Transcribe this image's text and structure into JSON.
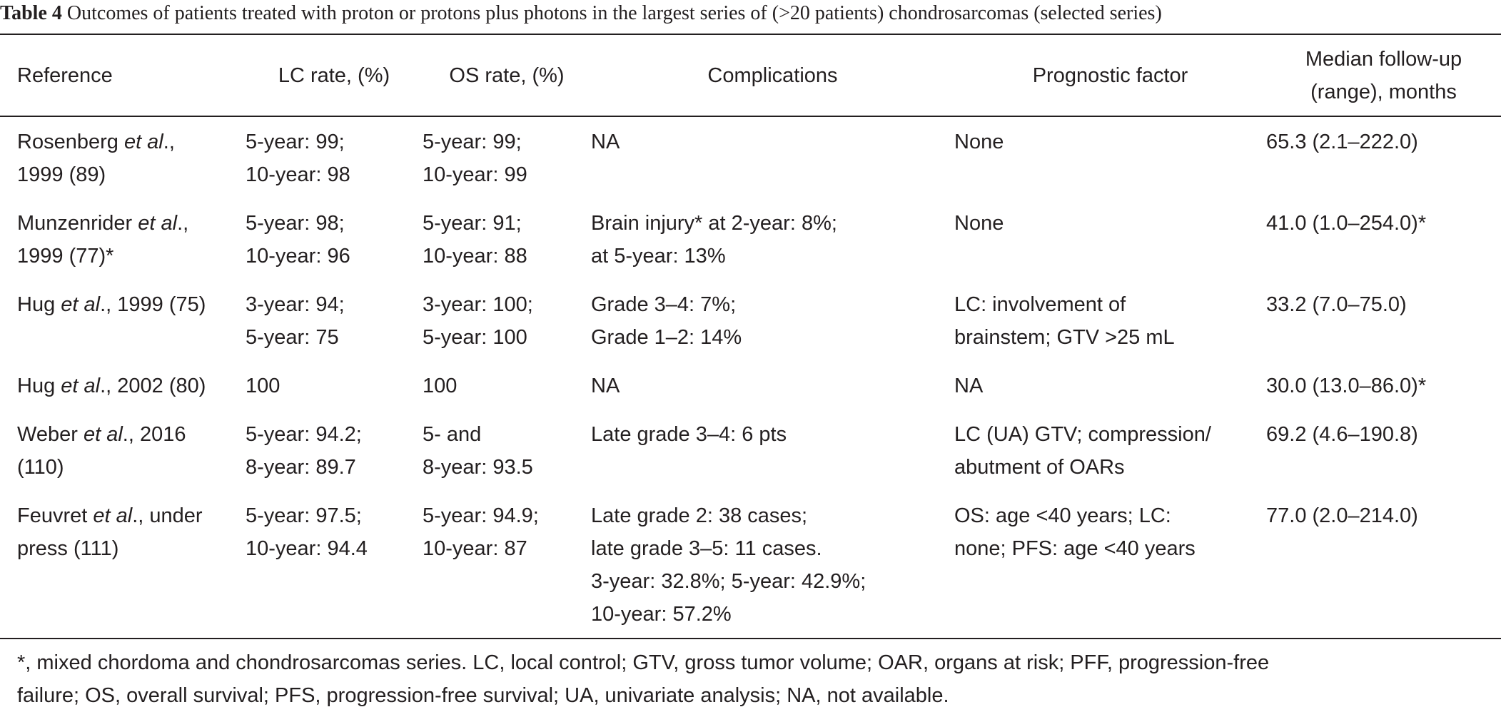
{
  "caption": {
    "label": "Table 4",
    "text": "Outcomes of patients treated with proton or protons plus photons in the largest series of (>20 patients) chondrosarcomas (selected series)"
  },
  "table": {
    "headers": [
      {
        "lines": [
          "Reference"
        ]
      },
      {
        "lines": [
          "LC rate, (%)"
        ]
      },
      {
        "lines": [
          "OS rate, (%)"
        ]
      },
      {
        "lines": [
          "Complications"
        ]
      },
      {
        "lines": [
          "Prognostic factor"
        ]
      },
      {
        "lines": [
          "Median follow-up",
          "(range), months"
        ]
      }
    ],
    "rows": [
      {
        "reference": {
          "author": "Rosenberg ",
          "etal": "et al",
          "rest_line1": ".,",
          "line2": "1999 (89)"
        },
        "lc": [
          "5-year: 99;",
          "10-year: 98"
        ],
        "os": [
          "5-year: 99;",
          "10-year: 99"
        ],
        "complications": [
          "NA"
        ],
        "prognostic": [
          "None"
        ],
        "followup": [
          "65.3 (2.1–222.0)"
        ]
      },
      {
        "reference": {
          "author": "Munzenrider ",
          "etal": "et al",
          "rest_line1": ".,",
          "line2": "1999 (77)*"
        },
        "lc": [
          "5-year: 98;",
          "10-year: 96"
        ],
        "os": [
          "5-year: 91;",
          "10-year: 88"
        ],
        "complications": [
          "Brain injury* at 2-year: 8%;",
          "at 5-year: 13%"
        ],
        "prognostic": [
          "None"
        ],
        "followup": [
          "41.0 (1.0–254.0)*"
        ]
      },
      {
        "reference": {
          "author": "Hug ",
          "etal": "et al",
          "rest_line1": "., 1999 (75)",
          "line2": ""
        },
        "lc": [
          "3-year: 94;",
          "5-year: 75"
        ],
        "os": [
          "3-year: 100;",
          "5-year: 100"
        ],
        "complications": [
          "Grade 3–4: 7%;",
          "Grade 1–2: 14%"
        ],
        "prognostic": [
          "LC: involvement of",
          "brainstem; GTV >25 mL"
        ],
        "followup": [
          "33.2 (7.0–75.0)"
        ]
      },
      {
        "reference": {
          "author": "Hug ",
          "etal": "et al",
          "rest_line1": "., 2002 (80)",
          "line2": ""
        },
        "lc": [
          "100"
        ],
        "os": [
          "100"
        ],
        "complications": [
          "NA"
        ],
        "prognostic": [
          "NA"
        ],
        "followup": [
          "30.0 (13.0–86.0)*"
        ]
      },
      {
        "reference": {
          "author": "Weber ",
          "etal": "et al",
          "rest_line1": "., 2016",
          "line2": "(110)"
        },
        "lc": [
          "5-year: 94.2;",
          "8-year: 89.7"
        ],
        "os": [
          "5- and",
          "8-year: 93.5"
        ],
        "complications": [
          "Late grade 3–4: 6 pts"
        ],
        "prognostic": [
          "LC (UA) GTV; compression/",
          "abutment of OARs"
        ],
        "followup": [
          "69.2 (4.6–190.8)"
        ]
      },
      {
        "reference": {
          "author": "Feuvret ",
          "etal": "et al",
          "rest_line1": "., under",
          "line2": "press (111)"
        },
        "lc": [
          "5-year: 97.5;",
          "10-year: 94.4"
        ],
        "os": [
          "5-year: 94.9;",
          "10-year: 87"
        ],
        "complications": [
          "Late grade 2: 38 cases;",
          "late grade 3–5: 11 cases.",
          "3-year: 32.8%; 5-year: 42.9%;",
          "10-year: 57.2%"
        ],
        "prognostic": [
          "OS: age <40 years; LC:",
          "none; PFS: age <40 years"
        ],
        "followup": [
          "77.0 (2.0–214.0)"
        ]
      }
    ]
  },
  "footnote": {
    "lines": [
      "*, mixed chordoma and chondrosarcomas series. LC, local control; GTV, gross tumor volume; OAR, organs at risk; PFF, progression-free",
      "failure; OS, overall survival; PFS, progression-free survival; UA, univariate analysis; NA, not available."
    ]
  }
}
